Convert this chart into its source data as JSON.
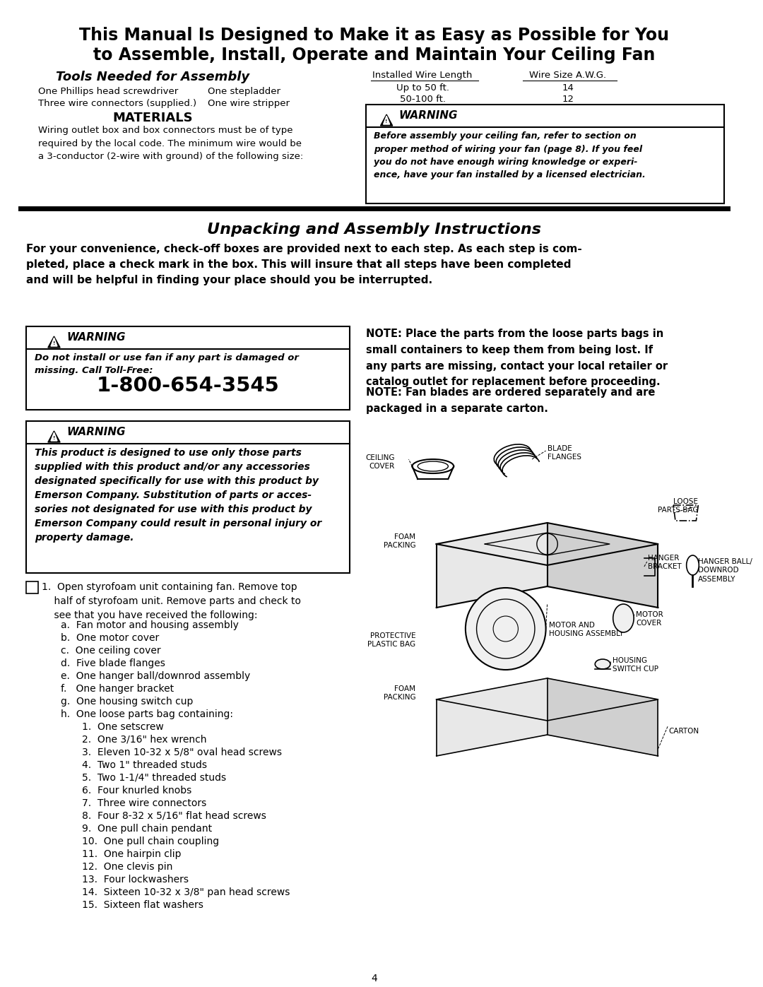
{
  "bg_color": "#ffffff",
  "text_color": "#000000",
  "title_line1": "This Manual Is Designed to Make it as Easy as Possible for You",
  "title_line2": "to Assemble, Install, Operate and Maintain Your Ceiling Fan",
  "tools_header": "Tools Needed for Assembly",
  "tools_col1_line1": "One Phillips head screwdriver",
  "tools_col1_line2": "Three wire connectors (supplied.)",
  "tools_col2_line1": "One stepladder",
  "tools_col2_line2": "One wire stripper",
  "wire_table_header1": "Installed Wire Length",
  "wire_table_header2": "Wire Size A.W.G.",
  "wire_table_row1_col1": "Up to 50 ft.",
  "wire_table_row1_col2": "14",
  "wire_table_row2_col1": "50-100 ft.",
  "wire_table_row2_col2": "12",
  "materials_header": "MATERIALS",
  "materials_text": "Wiring outlet box and box connectors must be of type\nrequired by the local code. The minimum wire would be\na 3-conductor (2-wire with ground) of the following size:",
  "warning1_header": "WARNING",
  "warning1_text": "Before assembly your ceiling fan, refer to section on\nproper method of wiring your fan (page 8). If you feel\nyou do not have enough wiring knowledge or experi-\nence, have your fan installed by a licensed electrician.",
  "section_title": "Unpacking and Assembly Instructions",
  "section_intro": "For your convenience, check-off boxes are provided next to each step. As each step is com-\npleted, place a check mark in the box. This will insure that all steps have been completed\nand will be helpful in finding your place should you be interrupted.",
  "warning2_header": "WARNING",
  "warning2_text": "Do not install or use fan if any part is damaged or\nmissing. Call Toll-Free:",
  "phone_number": "1-800-654-3545",
  "warning3_header": "WARNING",
  "warning3_text": "This product is designed to use only those parts\nsupplied with this product and/or any accessories\ndesignated specifically for use with this product by\nEmerson Company. Substitution of parts or acces-\nsories not designated for use with this product by\nEmerson Company could result in personal injury or\nproperty damage.",
  "note1_text": "NOTE: Place the parts from the loose parts bags in\nsmall containers to keep them from being lost. If\nany parts are missing, contact your local retailer or\ncatalog outlet for replacement before proceeding.",
  "note2_text": "NOTE: Fan blades are ordered separately and are\npackaged in a separate carton.",
  "step1_intro": "1.  Open styrofoam unit containing fan. Remove top\n    half of styrofoam unit. Remove parts and check to\n    see that you have received the following:",
  "step1_items": [
    "a.  Fan motor and housing assembly",
    "b.  One motor cover",
    "c.  One ceiling cover",
    "d.  Five blade flanges",
    "e.  One hanger ball/downrod assembly",
    "f.   One hanger bracket",
    "g.  One housing switch cup",
    "h.  One loose parts bag containing:"
  ],
  "step1_subitems": [
    "1.  One setscrew",
    "2.  One 3/16\" hex wrench",
    "3.  Eleven 10-32 x 5/8\" oval head screws",
    "4.  Two 1\" threaded studs",
    "5.  Two 1-1/4\" threaded studs",
    "6.  Four knurled knobs",
    "7.  Three wire connectors",
    "8.  Four 8-32 x 5/16\" flat head screws",
    "9.  One pull chain pendant",
    "10.  One pull chain coupling",
    "11.  One hairpin clip",
    "12.  One clevis pin",
    "13.  Four lockwashers",
    "14.  Sixteen 10-32 x 3/8\" pan head screws",
    "15.  Sixteen flat washers"
  ],
  "page_number": "4"
}
